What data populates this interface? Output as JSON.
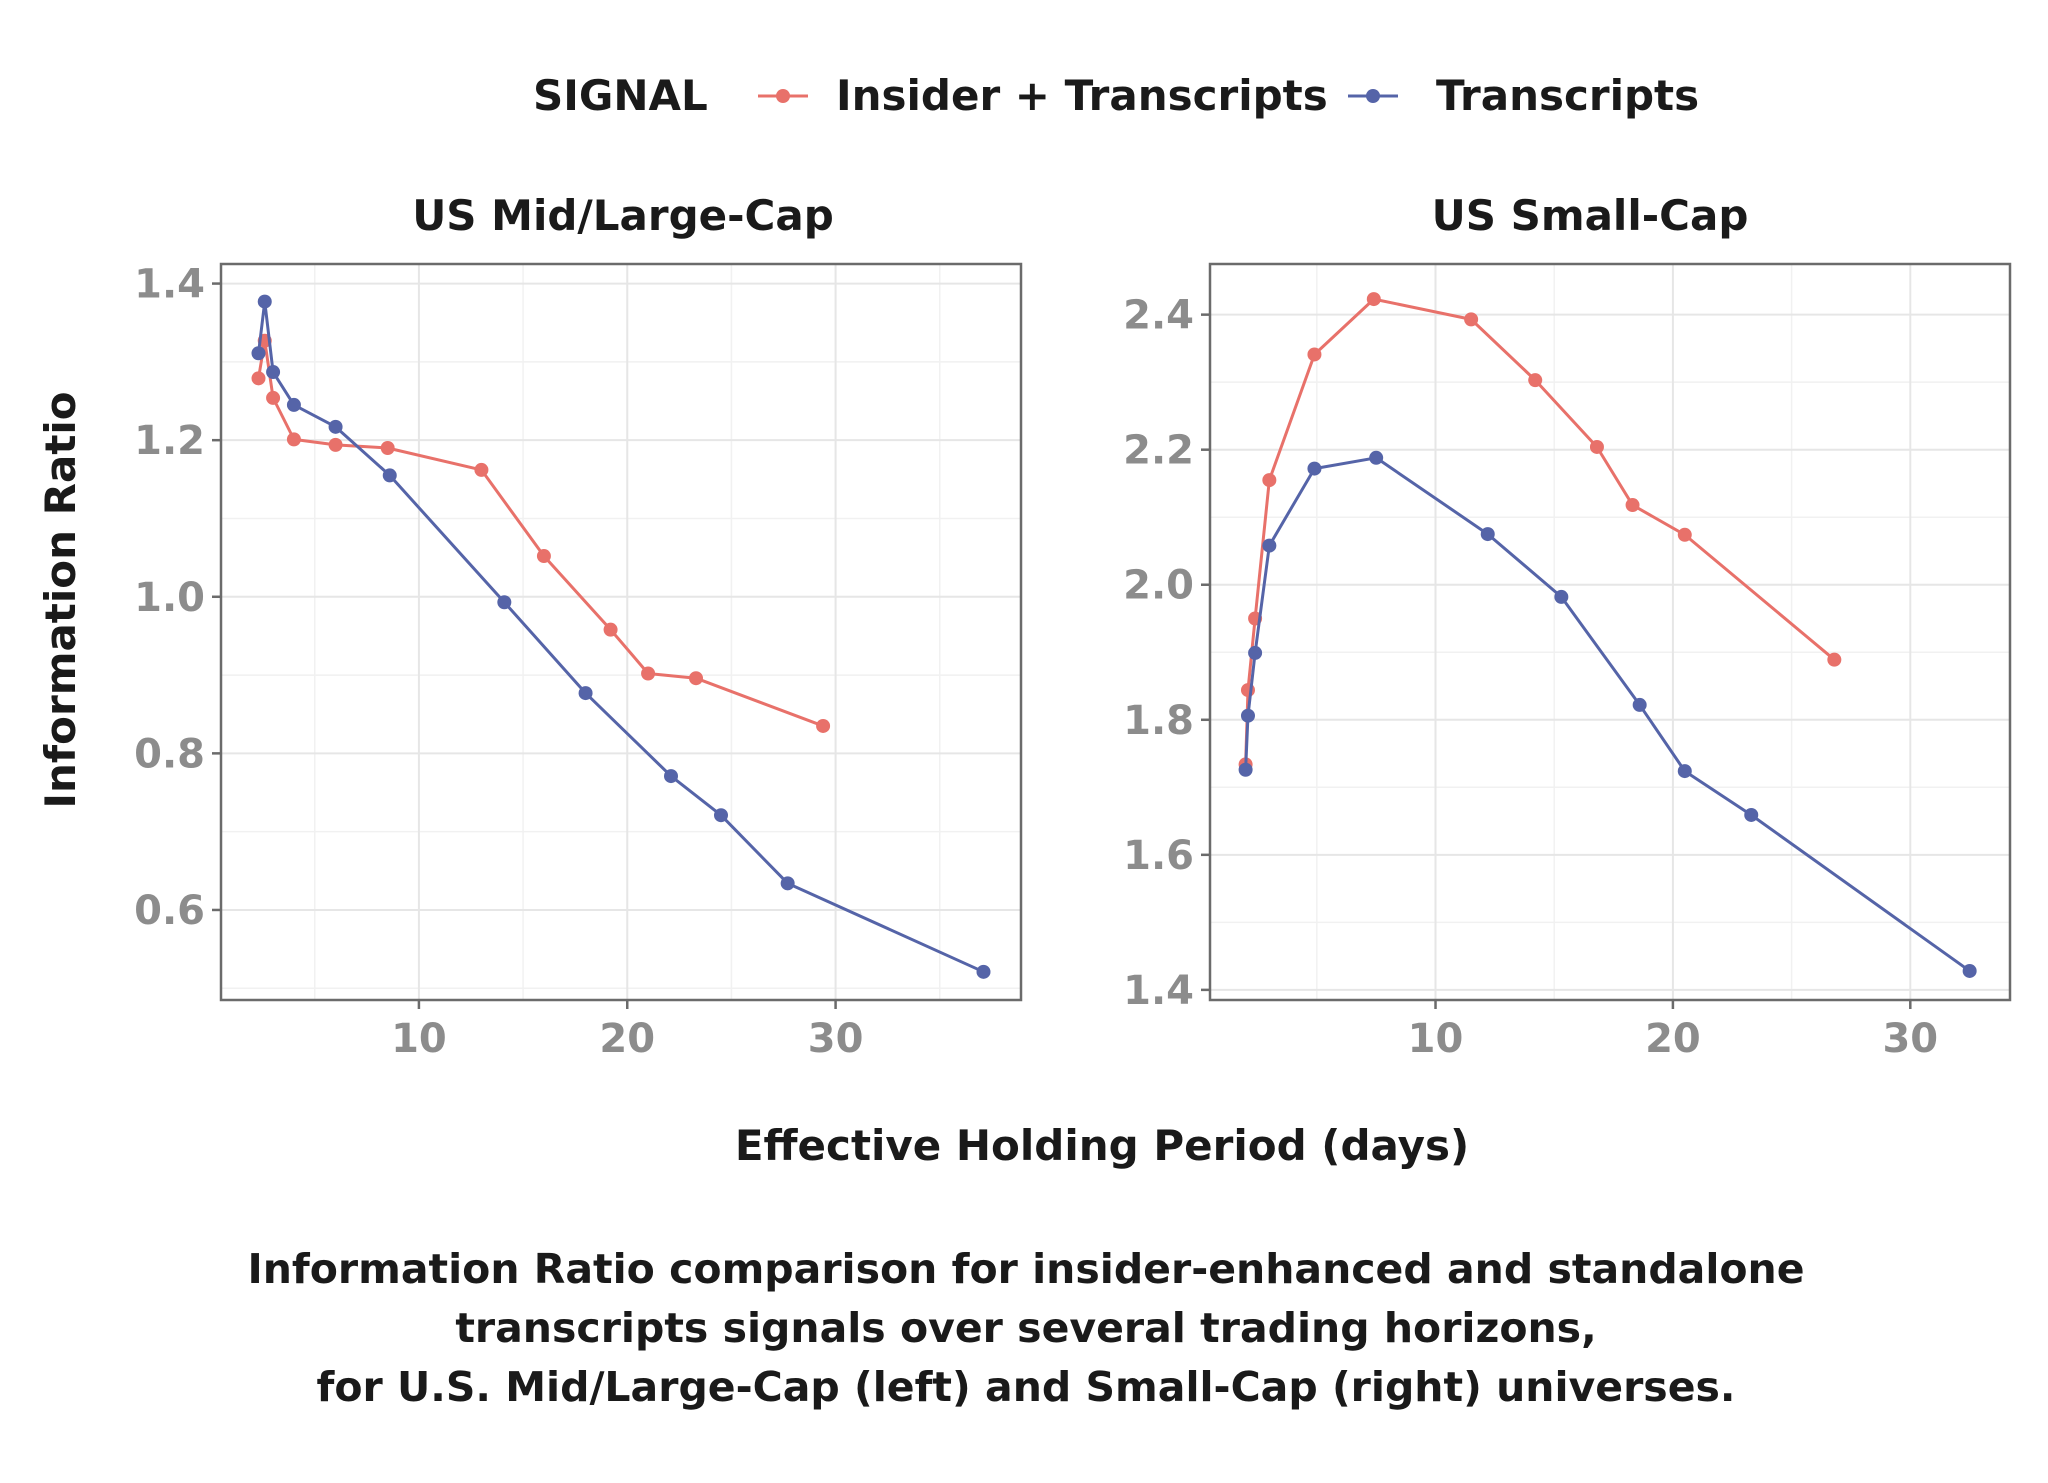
{
  "chart_data": {
    "type": "line",
    "legend": {
      "title": "SIGNAL",
      "placement": "top",
      "entries": [
        {
          "name": "Insider + Transcripts",
          "color": "#E8716A"
        },
        {
          "name": "Transcripts",
          "color": "#5564A8"
        }
      ]
    },
    "xlabel": "Effective Holding Period (days)",
    "ylabel": "Information Ratio",
    "caption": [
      "Information Ratio comparison for insider-enhanced and standalone",
      "transcripts signals over several trading horizons,",
      "for U.S. Mid/Large-Cap (left) and Small-Cap (right) universes."
    ],
    "panels": [
      {
        "title": "US Mid/Large-Cap",
        "xlim": [
          0.5,
          38.9
        ],
        "xticks": [
          10,
          20,
          30
        ],
        "ylim": [
          0.485,
          1.425
        ],
        "yticks": [
          0.6,
          0.8,
          1.0,
          1.2,
          1.4
        ],
        "ytick_labels": [
          "0.6",
          "0.8",
          "1.0",
          "1.2",
          "1.4"
        ],
        "series": [
          {
            "name": "Insider + Transcripts",
            "x": [
              2.3,
              2.6,
              3.0,
              4.0,
              6.0,
              8.5,
              13.0,
              16.0,
              19.2,
              21.0,
              23.3,
              29.4
            ],
            "y": [
              1.279,
              1.327,
              1.254,
              1.201,
              1.194,
              1.19,
              1.162,
              1.052,
              0.958,
              0.902,
              0.896,
              0.835
            ]
          },
          {
            "name": "Transcripts",
            "x": [
              2.3,
              2.6,
              3.0,
              4.0,
              6.0,
              8.6,
              14.1,
              18.0,
              22.1,
              24.5,
              27.7,
              37.1
            ],
            "y": [
              1.311,
              1.377,
              1.287,
              1.245,
              1.217,
              1.155,
              0.993,
              0.877,
              0.771,
              0.721,
              0.634,
              0.521
            ]
          }
        ]
      },
      {
        "title": "US Small-Cap",
        "xlim": [
          0.5,
          34.2
        ],
        "xticks": [
          10,
          20,
          30
        ],
        "ylim": [
          1.385,
          2.475
        ],
        "yticks": [
          1.4,
          1.6,
          1.8,
          2.0,
          2.2,
          2.4
        ],
        "ytick_labels": [
          "1.4",
          "1.6",
          "1.8",
          "2.0",
          "2.2",
          "2.4"
        ],
        "series": [
          {
            "name": "Insider + Transcripts",
            "x": [
              2.0,
              2.1,
              2.4,
              3.0,
              4.9,
              7.4,
              11.5,
              14.2,
              16.8,
              18.3,
              20.5,
              26.8
            ],
            "y": [
              1.734,
              1.844,
              1.95,
              2.155,
              2.341,
              2.423,
              2.393,
              2.303,
              2.204,
              2.118,
              2.074,
              1.889
            ]
          },
          {
            "name": "Transcripts",
            "x": [
              2.0,
              2.1,
              2.4,
              3.0,
              4.9,
              7.5,
              12.2,
              15.3,
              18.6,
              20.5,
              23.3,
              32.5
            ],
            "y": [
              1.726,
              1.806,
              1.899,
              2.058,
              2.172,
              2.188,
              2.075,
              1.982,
              1.822,
              1.724,
              1.659,
              1.428
            ]
          }
        ]
      }
    ]
  }
}
